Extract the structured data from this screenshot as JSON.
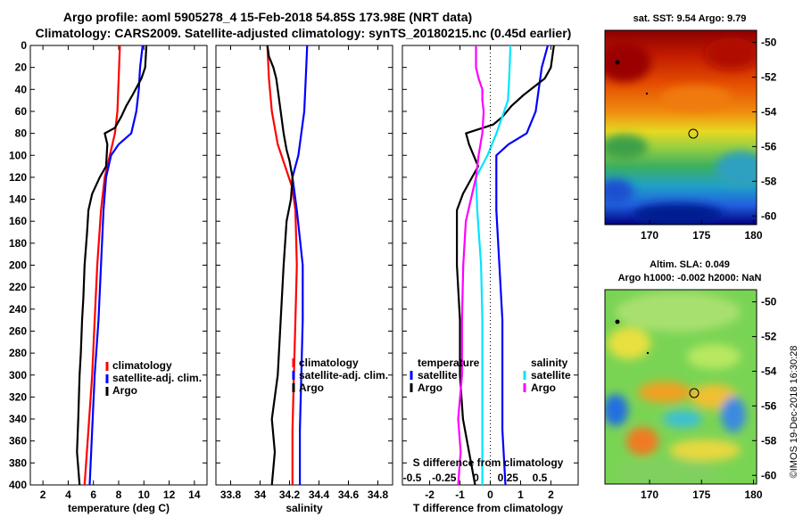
{
  "title": {
    "line1": "Argo profile: aoml 5905278_4 15-Feb-2018 54.85S 173.98E (NRT data)",
    "line2": "Climatology: CARS2009. Satellite-adjusted climatology: synTS_20180215.nc (0.45d earlier)"
  },
  "colors": {
    "climatology": "#ff0000",
    "satellite": "#0000ff",
    "argo": "#000000",
    "salinity_satellite": "#00e5ff",
    "salinity_argo": "#ff00ff"
  },
  "depth_ticks": [
    "0",
    "20",
    "40",
    "60",
    "80",
    "100",
    "120",
    "140",
    "160",
    "180",
    "200",
    "220",
    "240",
    "260",
    "280",
    "300",
    "320",
    "340",
    "360",
    "380",
    "400"
  ],
  "chart_data": [
    {
      "type": "line",
      "name": "temperature-profile",
      "xlabel": "temperature (deg C)",
      "ylabel": "depth",
      "xlim": [
        1,
        15
      ],
      "ylim": [
        400,
        0
      ],
      "xticks": [
        "2",
        "4",
        "6",
        "8",
        "10",
        "12",
        "14"
      ],
      "xtick_values": [
        2,
        4,
        6,
        8,
        10,
        12,
        14
      ],
      "legend": [
        "climatology",
        "satellite-adj. clim.",
        "Argo"
      ],
      "series": [
        {
          "name": "climatology",
          "color": "#ff0000",
          "points": [
            [
              8.1,
              0
            ],
            [
              8.0,
              30
            ],
            [
              7.9,
              60
            ],
            [
              7.7,
              80
            ],
            [
              7.3,
              100
            ],
            [
              6.9,
              120
            ],
            [
              6.6,
              150
            ],
            [
              6.3,
              200
            ],
            [
              6.1,
              250
            ],
            [
              5.9,
              300
            ],
            [
              5.6,
              350
            ],
            [
              5.3,
              400
            ]
          ]
        },
        {
          "name": "satellite-adj. clim.",
          "color": "#0000ff",
          "points": [
            [
              9.9,
              0
            ],
            [
              9.7,
              20
            ],
            [
              9.6,
              40
            ],
            [
              9.4,
              60
            ],
            [
              9.0,
              80
            ],
            [
              8.0,
              90
            ],
            [
              7.4,
              100
            ],
            [
              7.0,
              120
            ],
            [
              6.8,
              150
            ],
            [
              6.6,
              200
            ],
            [
              6.4,
              250
            ],
            [
              6.1,
              300
            ],
            [
              5.9,
              350
            ],
            [
              5.7,
              400
            ]
          ]
        },
        {
          "name": "Argo",
          "color": "#000000",
          "points": [
            [
              10.2,
              0
            ],
            [
              10.1,
              20
            ],
            [
              9.8,
              30
            ],
            [
              9.1,
              45
            ],
            [
              8.6,
              55
            ],
            [
              8.2,
              65
            ],
            [
              7.7,
              75
            ],
            [
              6.9,
              80
            ],
            [
              7.1,
              90
            ],
            [
              7.0,
              110
            ],
            [
              6.5,
              120
            ],
            [
              5.9,
              135
            ],
            [
              5.6,
              150
            ],
            [
              5.5,
              170
            ],
            [
              5.3,
              200
            ],
            [
              5.2,
              230
            ],
            [
              5.1,
              250
            ],
            [
              5.0,
              280
            ],
            [
              4.9,
              300
            ],
            [
              4.8,
              340
            ],
            [
              4.7,
              370
            ],
            [
              4.9,
              400
            ]
          ]
        }
      ]
    },
    {
      "type": "line",
      "name": "salinity-profile",
      "xlabel": "salinity",
      "ylabel": "depth",
      "xlim": [
        33.7,
        34.9
      ],
      "ylim": [
        400,
        0
      ],
      "xticks": [
        "33.8",
        "34",
        "34.2",
        "34.4",
        "34.6",
        "34.8"
      ],
      "xtick_values": [
        33.8,
        34.0,
        34.2,
        34.4,
        34.6,
        34.8
      ],
      "legend": [
        "climatology",
        "satellite-adj. clim.",
        "Argo"
      ],
      "series": [
        {
          "name": "climatology",
          "color": "#ff0000",
          "points": [
            [
              34.05,
              0
            ],
            [
              34.06,
              30
            ],
            [
              34.08,
              60
            ],
            [
              34.12,
              90
            ],
            [
              34.17,
              110
            ],
            [
              34.22,
              130
            ],
            [
              34.24,
              150
            ],
            [
              34.25,
              200
            ],
            [
              34.24,
              250
            ],
            [
              34.23,
              300
            ],
            [
              34.22,
              350
            ],
            [
              34.22,
              400
            ]
          ]
        },
        {
          "name": "satellite-adj. clim.",
          "color": "#0000ff",
          "points": [
            [
              34.32,
              0
            ],
            [
              34.31,
              30
            ],
            [
              34.3,
              60
            ],
            [
              34.28,
              80
            ],
            [
              34.26,
              100
            ],
            [
              34.22,
              120
            ],
            [
              34.25,
              150
            ],
            [
              34.29,
              200
            ],
            [
              34.29,
              250
            ],
            [
              34.28,
              300
            ],
            [
              34.27,
              350
            ],
            [
              34.27,
              400
            ]
          ]
        },
        {
          "name": "Argo",
          "color": "#000000",
          "points": [
            [
              34.05,
              0
            ],
            [
              34.06,
              10
            ],
            [
              34.09,
              20
            ],
            [
              34.11,
              30
            ],
            [
              34.12,
              40
            ],
            [
              34.14,
              60
            ],
            [
              34.16,
              80
            ],
            [
              34.18,
              95
            ],
            [
              34.2,
              105
            ],
            [
              34.22,
              120
            ],
            [
              34.21,
              140
            ],
            [
              34.18,
              160
            ],
            [
              34.16,
              200
            ],
            [
              34.14,
              250
            ],
            [
              34.12,
              300
            ],
            [
              34.08,
              340
            ],
            [
              34.1,
              370
            ],
            [
              34.08,
              400
            ]
          ]
        }
      ]
    },
    {
      "type": "line",
      "name": "difference-profile",
      "xlabel": "T difference from climatology",
      "xlabel_top": "S difference from climatology",
      "ylabel": "depth",
      "xlim": [
        -2.9,
        2.9
      ],
      "ylim": [
        400,
        0
      ],
      "xticks": [
        "-2",
        "-1",
        "0",
        "1",
        "2"
      ],
      "xtick_values": [
        -2,
        -1,
        0,
        1,
        2
      ],
      "sticks": [
        "-0.5",
        "-0.25",
        "0",
        "0.25",
        "0.5"
      ],
      "stick_values": [
        -0.5,
        -0.25,
        0,
        0.25,
        0.5
      ],
      "legend_temperature": {
        "title": "temperature",
        "items": [
          "satellite",
          "Argo"
        ]
      },
      "legend_salinity": {
        "title": "salinity",
        "items": [
          "satellite",
          "Argo"
        ]
      },
      "series": [
        {
          "name": "T satellite",
          "color": "#0000ff",
          "units": "T",
          "points": [
            [
              1.9,
              0
            ],
            [
              1.7,
              20
            ],
            [
              1.6,
              40
            ],
            [
              1.5,
              60
            ],
            [
              1.2,
              80
            ],
            [
              0.6,
              90
            ],
            [
              0.2,
              100
            ],
            [
              0.2,
              150
            ],
            [
              0.3,
              200
            ],
            [
              0.4,
              250
            ],
            [
              0.4,
              300
            ],
            [
              0.4,
              350
            ],
            [
              0.5,
              400
            ]
          ]
        },
        {
          "name": "T Argo",
          "color": "#000000",
          "units": "T",
          "points": [
            [
              2.1,
              0
            ],
            [
              2.0,
              20
            ],
            [
              1.8,
              30
            ],
            [
              1.1,
              45
            ],
            [
              0.7,
              55
            ],
            [
              0.4,
              65
            ],
            [
              0.1,
              72
            ],
            [
              -0.8,
              80
            ],
            [
              -0.7,
              90
            ],
            [
              -0.4,
              110
            ],
            [
              -0.6,
              120
            ],
            [
              -0.9,
              135
            ],
            [
              -1.1,
              150
            ],
            [
              -1.1,
              200
            ],
            [
              -1.0,
              250
            ],
            [
              -1.0,
              300
            ],
            [
              -0.9,
              340
            ],
            [
              -0.7,
              370
            ],
            [
              -0.5,
              400
            ]
          ]
        },
        {
          "name": "S satellite",
          "color": "#00e5ff",
          "units": "S",
          "points": [
            [
              0.27,
              0
            ],
            [
              0.26,
              30
            ],
            [
              0.25,
              50
            ],
            [
              0.16,
              80
            ],
            [
              0.09,
              100
            ],
            [
              0.0,
              120
            ],
            [
              0.01,
              150
            ],
            [
              0.04,
              200
            ],
            [
              0.05,
              250
            ],
            [
              0.05,
              300
            ],
            [
              0.05,
              350
            ],
            [
              0.05,
              400
            ]
          ]
        },
        {
          "name": "S Argo",
          "color": "#ff00ff",
          "units": "S",
          "points": [
            [
              0.0,
              0
            ],
            [
              0.0,
              20
            ],
            [
              0.02,
              30
            ],
            [
              0.05,
              40
            ],
            [
              0.05,
              50
            ],
            [
              0.06,
              60
            ],
            [
              0.05,
              80
            ],
            [
              0.02,
              100
            ],
            [
              0.0,
              120
            ],
            [
              -0.04,
              140
            ],
            [
              -0.08,
              160
            ],
            [
              -0.1,
              200
            ],
            [
              -0.11,
              250
            ],
            [
              -0.11,
              300
            ],
            [
              -0.14,
              340
            ],
            [
              -0.12,
              370
            ],
            [
              -0.14,
              400
            ]
          ]
        }
      ]
    }
  ],
  "maps": {
    "sst": {
      "title": "sat. SST: 9.54 Argo: 9.79",
      "lat_ticks": [
        "-50",
        "-52",
        "-54",
        "-56",
        "-58",
        "-60"
      ],
      "lon_ticks": [
        "170",
        "175",
        "180"
      ]
    },
    "sla": {
      "title1": "Altim. SLA: 0.049",
      "title2": "Argo h1000: -0.002 h2000: NaN",
      "lat_ticks": [
        "-50",
        "-52",
        "-54",
        "-56",
        "-58",
        "-60"
      ],
      "lon_ticks": [
        "170",
        "175",
        "180"
      ]
    }
  },
  "credit": "©IMOS 19-Dec-2018 16:30:28"
}
